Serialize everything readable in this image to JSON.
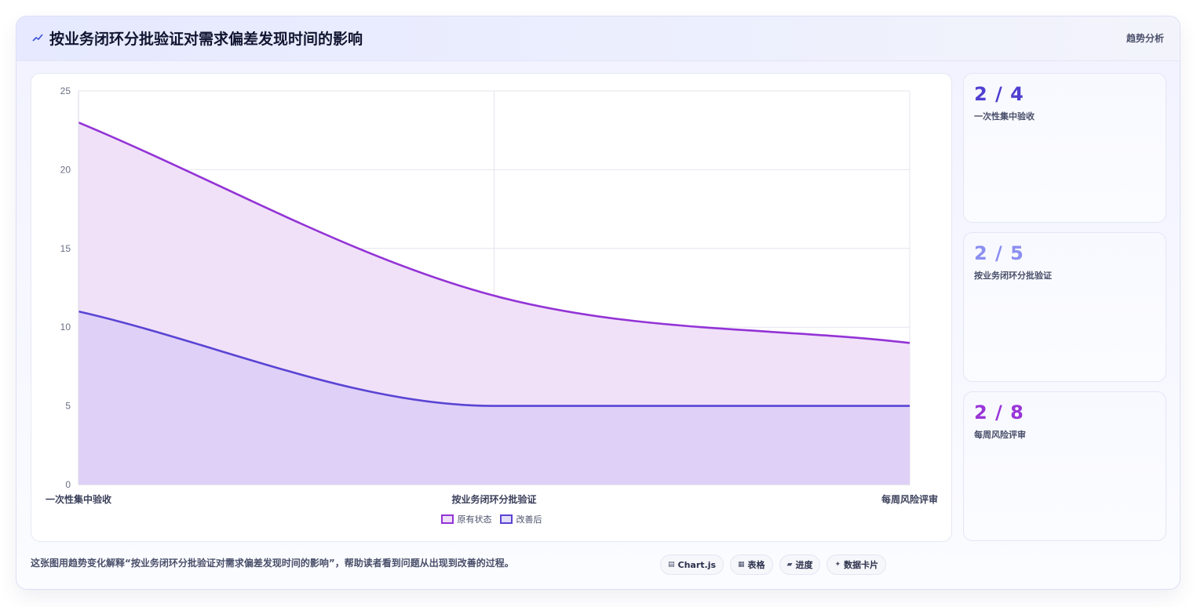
{
  "header": {
    "title": "按业务闭环分批验证对需求偏差发现时间的影响",
    "tag": "趋势分析",
    "icon": "trend-line-icon"
  },
  "chart_data": {
    "type": "area",
    "categories": [
      "一次性集中验收",
      "按业务闭环分批验证",
      "每周风险评审"
    ],
    "series": [
      {
        "name": "原有状态",
        "values": [
          23,
          12,
          9
        ],
        "color": "#9333d6"
      },
      {
        "name": "改善后",
        "values": [
          11,
          5,
          5
        ],
        "color": "#5a44d4"
      }
    ],
    "ylim": [
      0,
      25
    ],
    "yticks": [
      0,
      5,
      10,
      15,
      20,
      25
    ],
    "grid": true,
    "legend": "bottom"
  },
  "cards": [
    {
      "value": "2 / 4",
      "label": "一次性集中验收",
      "color": "#4f3fd0"
    },
    {
      "value": "2 / 5",
      "label": "按业务闭环分批验证",
      "color": "#8c8ff0"
    },
    {
      "value": "2 / 8",
      "label": "每周风险评审",
      "color": "#9a36d8"
    }
  ],
  "footer": {
    "text": "这张图用趋势变化解释“按业务闭环分批验证对需求偏差发现时间的影响”，帮助读者看到问题从出现到改善的过程。",
    "chips": [
      {
        "icon": "chart-icon",
        "glyph": "▤",
        "label": "Chart.js"
      },
      {
        "icon": "table-icon",
        "glyph": "▦",
        "label": "表格"
      },
      {
        "icon": "progress-icon",
        "glyph": "▰",
        "label": "进度"
      },
      {
        "icon": "sparkle-icon",
        "glyph": "✦",
        "label": "数据卡片"
      }
    ]
  }
}
